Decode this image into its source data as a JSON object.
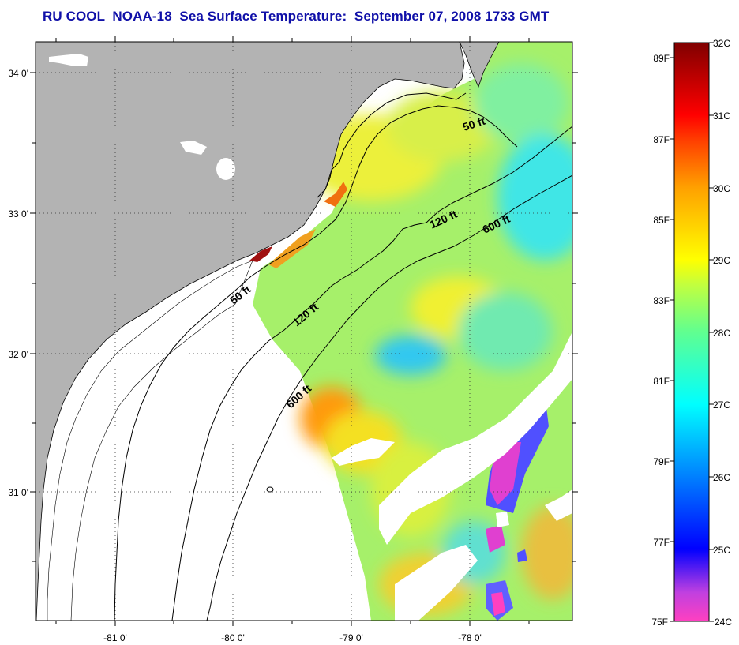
{
  "title": "RU COOL  NOAA-18  Sea Surface Temperature:  September 07, 2008 1733 GMT",
  "map": {
    "lon_ticks": [
      "-81 0'",
      "-80 0'",
      "-79 0'",
      "-78 0'"
    ],
    "lat_ticks": [
      "34 0'",
      "33 0'",
      "32 0'",
      "31 0'"
    ],
    "contour_labels": {
      "c50_north": "50 ft",
      "c50_south": "50 ft",
      "c120_north": "120 ft",
      "c120_south": "120 ft",
      "c600_north": "600 ft",
      "c600_south": "600 ft"
    },
    "colors": {
      "land": "#b3b3b3",
      "cloud": "#ffffff"
    }
  },
  "colorbar": {
    "fahrenheit": [
      "89F",
      "87F",
      "85F",
      "83F",
      "81F",
      "79F",
      "77F",
      "75F"
    ],
    "celsius": [
      "32C",
      "31C",
      "30C",
      "29C",
      "28C",
      "27C",
      "26C",
      "25C",
      "24C"
    ],
    "stops": [
      "#ff40c0",
      "#c040e0",
      "#0000ff",
      "#0080ff",
      "#00ffff",
      "#60ff90",
      "#c0ff40",
      "#ffff00",
      "#ffa000",
      "#ff4000",
      "#ff0000",
      "#800000"
    ]
  }
}
